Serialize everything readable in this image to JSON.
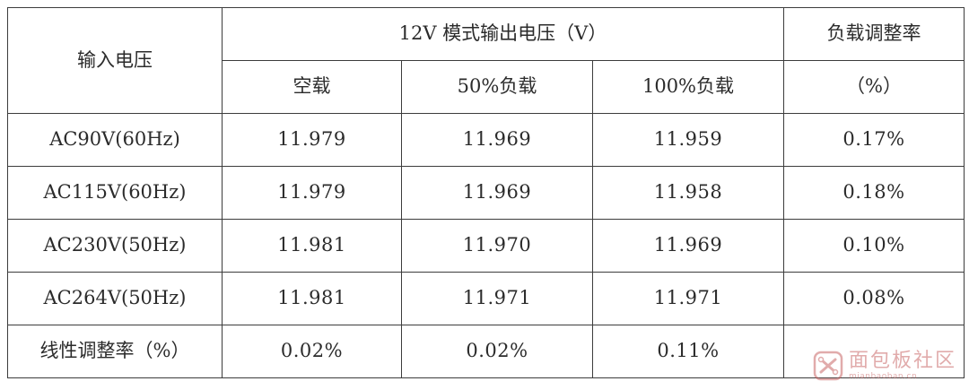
{
  "table": {
    "header": {
      "input_voltage": "输入电压",
      "group_title": "12V 模式输出电压（V）",
      "load_regulation": "负载调整率",
      "load_regulation_unit": "（%）",
      "sub_columns": [
        "空载",
        "50%负载",
        "100%负载"
      ]
    },
    "rows": [
      {
        "input": "AC90V(60Hz)",
        "no_load": "11.979",
        "half_load": "11.969",
        "full_load": "11.959",
        "load_reg": "0.17%"
      },
      {
        "input": "AC115V(60Hz)",
        "no_load": "11.979",
        "half_load": "11.969",
        "full_load": "11.958",
        "load_reg": "0.18%"
      },
      {
        "input": "AC230V(50Hz)",
        "no_load": "11.981",
        "half_load": "11.970",
        "full_load": "11.969",
        "load_reg": "0.10%"
      },
      {
        "input": "AC264V(50Hz)",
        "no_load": "11.981",
        "half_load": "11.971",
        "full_load": "11.971",
        "load_reg": "0.08%"
      }
    ],
    "line_regulation": {
      "label": "线性调整率（%）",
      "no_load": "0.02%",
      "half_load": "0.02%",
      "full_load": "0.11%",
      "load_reg": ""
    }
  },
  "watermark": {
    "name": "面包板社区",
    "url": "mianbaoban.cn",
    "color": "#c45a5a"
  }
}
